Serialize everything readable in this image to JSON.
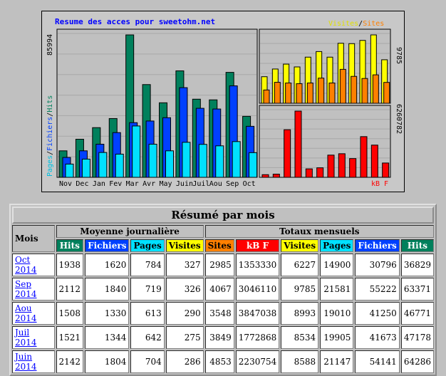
{
  "chart": {
    "title": "Resume des acces pour sweetohm.net",
    "legend_top": {
      "visites": "Visites",
      "sep": "/",
      "sites": "Sites"
    },
    "legend_bottom": "kB F",
    "y_axis_left_label": {
      "pages": "Pages",
      "sep1": "/",
      "fichiers": "Fichiers",
      "sep2": "/",
      "hits": "Hits"
    },
    "left_max": "85994",
    "right_top_max": "9785",
    "right_bottom_max": "6260782",
    "colors": {
      "hits": "#00805c",
      "files": "#0040ff",
      "pages": "#00e0ff",
      "visits": "#ffff00",
      "sites": "#ff8000",
      "kbf": "#ff0000",
      "bg": "#c0c0c0"
    }
  },
  "chart_data": {
    "type": "bar",
    "categories": [
      "Nov",
      "Dec",
      "Jan",
      "Fev",
      "Mar",
      "Avr",
      "May",
      "Juin",
      "Juil",
      "Aou",
      "Sep",
      "Oct"
    ],
    "left": {
      "ylim": [
        0,
        85994
      ],
      "series": [
        {
          "name": "Hits",
          "values": [
            16000,
            23000,
            30000,
            35500,
            85994,
            56000,
            45000,
            64286,
            47178,
            46771,
            63371,
            36829
          ]
        },
        {
          "name": "Fichiers",
          "values": [
            12000,
            16000,
            20000,
            27000,
            33000,
            34000,
            36000,
            54141,
            41673,
            41250,
            55222,
            30796
          ]
        },
        {
          "name": "Pages",
          "values": [
            8000,
            11000,
            15000,
            14000,
            31000,
            20000,
            16000,
            21147,
            19905,
            19010,
            21581,
            14900
          ]
        }
      ]
    },
    "right_top": {
      "ylim": [
        0,
        9785
      ],
      "series": [
        {
          "name": "Visites",
          "values": [
            3800,
            4900,
            5600,
            5200,
            6600,
            7400,
            6600,
            8588,
            8534,
            8993,
            9785,
            6227
          ]
        },
        {
          "name": "Sites",
          "values": [
            1900,
            3000,
            2900,
            2800,
            2900,
            3600,
            2900,
            4853,
            3849,
            3548,
            4067,
            2985
          ]
        }
      ]
    },
    "right_bottom": {
      "ylim": [
        0,
        6260782
      ],
      "series": [
        {
          "name": "kB F",
          "values": [
            250000,
            300000,
            4500000,
            6260782,
            800000,
            900000,
            2100000,
            2230754,
            1772868,
            3847038,
            3046110,
            1353330
          ]
        }
      ]
    }
  },
  "summary": {
    "title": "Résumé par mois",
    "mois_label": "Mois",
    "group_daily": "Moyenne journalière",
    "group_monthly": "Totaux mensuels",
    "daily_headers": [
      "Hits",
      "Fichiers",
      "Pages",
      "Visites"
    ],
    "monthly_headers": [
      "Sites",
      "kB F",
      "Visites",
      "Pages",
      "Fichiers",
      "Hits"
    ],
    "rows": [
      {
        "month": "Oct 2014",
        "d_hits": "1938",
        "d_files": "1620",
        "d_pages": "784",
        "d_visits": "327",
        "sites": "2985",
        "kbf": "1353330",
        "visits": "6227",
        "pages": "14900",
        "files": "30796",
        "hits": "36829"
      },
      {
        "month": "Sep 2014",
        "d_hits": "2112",
        "d_files": "1840",
        "d_pages": "719",
        "d_visits": "326",
        "sites": "4067",
        "kbf": "3046110",
        "visits": "9785",
        "pages": "21581",
        "files": "55222",
        "hits": "63371"
      },
      {
        "month": "Aou 2014",
        "d_hits": "1508",
        "d_files": "1330",
        "d_pages": "613",
        "d_visits": "290",
        "sites": "3548",
        "kbf": "3847038",
        "visits": "8993",
        "pages": "19010",
        "files": "41250",
        "hits": "46771"
      },
      {
        "month": "Juil 2014",
        "d_hits": "1521",
        "d_files": "1344",
        "d_pages": "642",
        "d_visits": "275",
        "sites": "3849",
        "kbf": "1772868",
        "visits": "8534",
        "pages": "19905",
        "files": "41673",
        "hits": "47178"
      },
      {
        "month": "Juin 2014",
        "d_hits": "2142",
        "d_files": "1804",
        "d_pages": "704",
        "d_visits": "286",
        "sites": "4853",
        "kbf": "2230754",
        "visits": "8588",
        "pages": "21147",
        "files": "54141",
        "hits": "64286"
      }
    ]
  }
}
